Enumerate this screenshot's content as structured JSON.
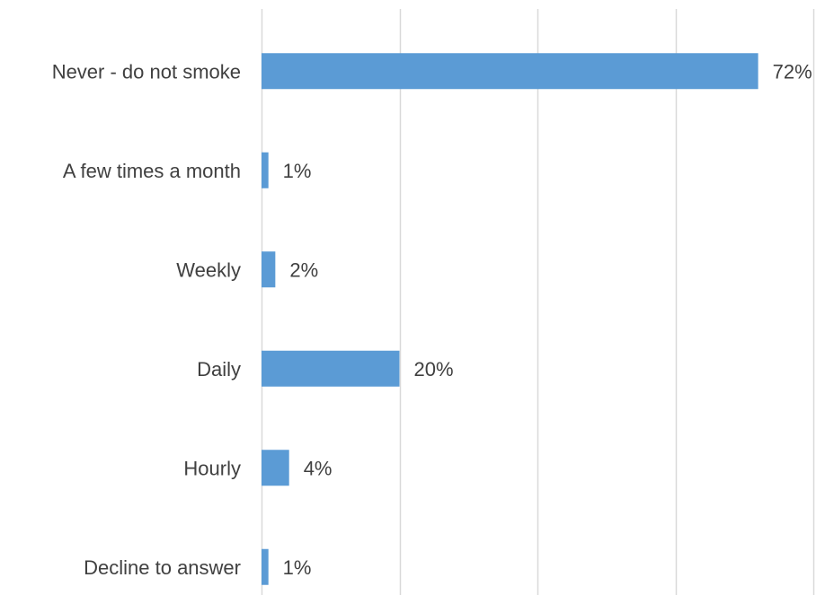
{
  "chart_data": {
    "type": "bar",
    "orientation": "horizontal",
    "categories": [
      "Never - do not smoke",
      "A few times a month",
      "Weekly",
      "Daily",
      "Hourly",
      "Decline to answer"
    ],
    "values": [
      72,
      1,
      2,
      20,
      4,
      1
    ],
    "value_labels": [
      "72%",
      "1%",
      "2%",
      "20%",
      "4%",
      "1%"
    ],
    "unit": "%",
    "xlim": [
      0,
      80
    ],
    "grid": true,
    "legend": "none",
    "bar_color": "#5b9bd5",
    "grid_color": "#d9d9d9",
    "text_color": "#404040"
  }
}
